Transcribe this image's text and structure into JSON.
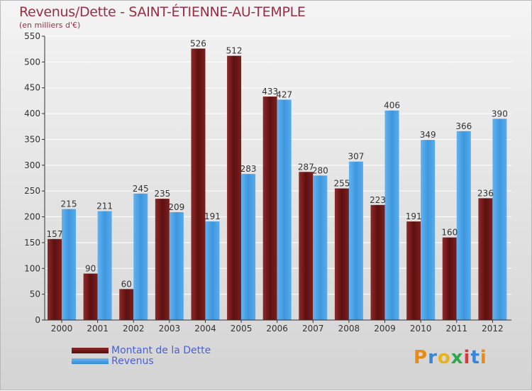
{
  "title": "Revenus/Dette - SAINT-ÉTIENNE-AU-TEMPLE",
  "subtitle": "(en milliers d'€)",
  "colors": {
    "debt": "#6b1414",
    "revenue": "#4aa3e8",
    "title": "#9b2d44",
    "legend_text": "#4a5fd6"
  },
  "chart_data": {
    "type": "bar",
    "categories": [
      "2000",
      "2001",
      "2002",
      "2003",
      "2004",
      "2005",
      "2006",
      "2007",
      "2008",
      "2009",
      "2010",
      "2011",
      "2012"
    ],
    "series": [
      {
        "name": "Montant de la Dette",
        "values": [
          157,
          90,
          60,
          235,
          526,
          512,
          433,
          287,
          255,
          223,
          191,
          160,
          236
        ]
      },
      {
        "name": "Revenus",
        "values": [
          215,
          211,
          245,
          209,
          191,
          283,
          427,
          280,
          307,
          406,
          349,
          366,
          390
        ]
      }
    ],
    "xlabel": "",
    "ylabel": "",
    "ylim": [
      0,
      550
    ],
    "yticks": [
      0,
      50,
      100,
      150,
      200,
      250,
      300,
      350,
      400,
      450,
      500,
      550
    ],
    "grid": true,
    "legend_position": "bottom-left"
  },
  "legend": {
    "items": [
      {
        "label": "Montant de la Dette"
      },
      {
        "label": "Revenus"
      }
    ]
  },
  "logo": {
    "text": "Proxiti"
  }
}
